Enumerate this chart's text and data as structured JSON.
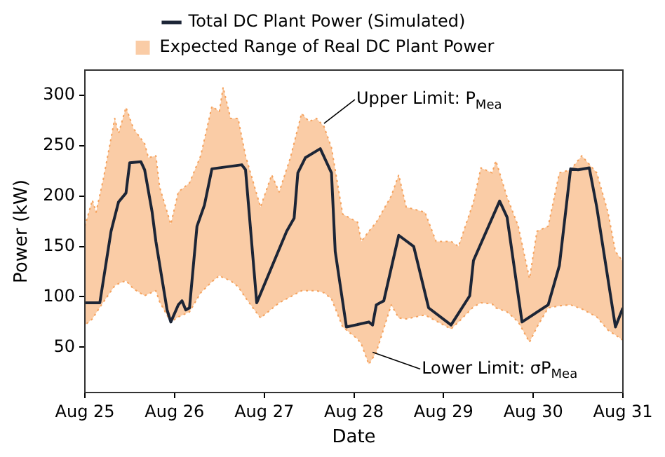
{
  "chart_data": {
    "type": "line",
    "xlabel": "Date",
    "ylabel": "Power (kW)",
    "legend": "top",
    "grid": false,
    "xlim": [
      "--08-25",
      "--08-31"
    ],
    "xticks": [
      {
        "value": "--08-25",
        "label": "Aug 25"
      },
      {
        "value": "--08-26",
        "label": "Aug 26"
      },
      {
        "value": "--08-27",
        "label": "Aug 27"
      },
      {
        "value": "--08-28",
        "label": "Aug 28"
      },
      {
        "value": "--08-29",
        "label": "Aug 29"
      },
      {
        "value": "--08-30",
        "label": "Aug 30"
      },
      {
        "value": "--08-31",
        "label": "Aug 31"
      }
    ],
    "ylim": [
      5,
      325
    ],
    "yticks": [
      50,
      100,
      150,
      200,
      250,
      300
    ],
    "series": [
      {
        "name": "Total DC Plant Power (Simulated)",
        "type": "line",
        "color": "#1c2536",
        "marker": "none",
        "line_style": "solid",
        "x": [
          "--08-25T00:00",
          "--08-25T04:00",
          "--08-25T07:00",
          "--08-25T09:00",
          "--08-25T11:00",
          "--08-25T12:00",
          "--08-25T15:00",
          "--08-25T16:00",
          "--08-25T18:00",
          "--08-25T19:00",
          "--08-25T22:00",
          "--08-25T23:00",
          "--08-26T01:00",
          "--08-26T02:00",
          "--08-26T03:00",
          "--08-26T04:00",
          "--08-26T06:00",
          "--08-26T08:00",
          "--08-26T10:00",
          "--08-26T18:00",
          "--08-26T19:00",
          "--08-26T22:00",
          "--08-27T06:00",
          "--08-27T08:00",
          "--08-27T09:00",
          "--08-27T11:00",
          "--08-27T15:00",
          "--08-27T18:00",
          "--08-27T19:00",
          "--08-27T22:00",
          "--08-28T04:00",
          "--08-28T05:00",
          "--08-28T06:00",
          "--08-28T07:00",
          "--08-28T08:00",
          "--08-28T12:00",
          "--08-28T16:00",
          "--08-28T20:00",
          "--08-29T02:00",
          "--08-29T07:00",
          "--08-29T08:00",
          "--08-29T15:00",
          "--08-29T17:00",
          "--08-29T21:00",
          "--08-30T04:00",
          "--08-30T07:00",
          "--08-30T10:00",
          "--08-30T12:00",
          "--08-30T15:00",
          "--08-30T17:00",
          "--08-30T22:00",
          "--08-31T00:00"
        ],
        "values": [
          94,
          94,
          165,
          194,
          203,
          233,
          234,
          226,
          184,
          155,
          87,
          75,
          92,
          96,
          87,
          89,
          170,
          191,
          227,
          231,
          226,
          94,
          165,
          178,
          223,
          238,
          247,
          223,
          145,
          70,
          75,
          72,
          92,
          94,
          96,
          161,
          150,
          89,
          72,
          101,
          136,
          195,
          179,
          75,
          92,
          131,
          227,
          226,
          228,
          189,
          70,
          89
        ]
      },
      {
        "name": "Expected Range of Real DC Plant Power",
        "type": "area",
        "color": "#f5a25d",
        "marker": "none",
        "line_style": "dotted",
        "x": [
          "--08-25T00:00",
          "--08-25T02:00",
          "--08-25T03:00",
          "--08-25T05:00",
          "--08-25T08:00",
          "--08-25T09:00",
          "--08-25T11:00",
          "--08-25T13:00",
          "--08-25T16:00",
          "--08-25T17:00",
          "--08-25T19:00",
          "--08-25T20:00",
          "--08-25T23:00",
          "--08-26T01:00",
          "--08-26T04:00",
          "--08-26T07:00",
          "--08-26T10:00",
          "--08-26T12:00",
          "--08-26T13:00",
          "--08-26T15:00",
          "--08-26T17:00",
          "--08-26T19:00",
          "--08-26T23:00",
          "--08-27T02:00",
          "--08-27T04:00",
          "--08-27T07:00",
          "--08-27T10:00",
          "--08-27T12:00",
          "--08-27T14:00",
          "--08-27T16:00",
          "--08-27T18:00",
          "--08-27T21:00",
          "--08-28T01:00",
          "--08-28T02:00",
          "--08-28T04:00",
          "--08-28T06:00",
          "--08-28T10:00",
          "--08-28T12:00",
          "--08-28T14:00",
          "--08-28T19:00",
          "--08-28T22:00",
          "--08-29T02:00",
          "--08-29T04:00",
          "--08-29T08:00",
          "--08-29T10:00",
          "--08-29T13:00",
          "--08-29T14:00",
          "--08-29T17:00",
          "--08-29T20:00",
          "--08-29T23:00",
          "--08-30T01:00",
          "--08-30T04:00",
          "--08-30T07:00",
          "--08-30T10:00",
          "--08-30T13:00",
          "--08-30T17:00",
          "--08-30T20:00",
          "--08-30T22:00",
          "--08-31T00:00"
        ],
        "values": [
          null,
          null,
          null,
          null,
          null,
          null,
          null,
          null,
          null,
          null,
          null,
          null,
          null,
          null,
          null,
          null,
          null,
          null,
          null,
          null,
          null,
          null,
          null,
          null,
          null,
          null,
          null,
          null,
          null,
          null,
          null,
          null,
          null,
          null,
          null,
          null,
          null,
          null,
          null,
          null,
          null,
          null,
          null,
          null,
          null,
          null,
          null,
          null,
          null,
          null,
          null,
          null,
          null,
          null,
          null,
          null,
          null,
          null,
          null
        ],
        "upper": [
          170,
          196,
          184,
          218,
          277,
          262,
          288,
          267,
          252,
          238,
          240,
          209,
          172,
          204,
          213,
          240,
          289,
          284,
          308,
          277,
          277,
          240,
          189,
          221,
          204,
          238,
          282,
          274,
          277,
          269,
          248,
          182,
          174,
          155,
          165,
          174,
          200,
          221,
          189,
          184,
          155,
          155,
          150,
          194,
          228,
          223,
          235,
          199,
          170,
          118,
          165,
          170,
          223,
          226,
          240,
          223,
          184,
          145,
          135
        ],
        "lower": [
          72,
          78,
          84,
          95,
          111,
          113,
          116,
          108,
          101,
          103,
          106,
          95,
          75,
          80,
          85,
          104,
          115,
          121,
          119,
          116,
          110,
          99,
          79,
          88,
          94,
          100,
          106,
          106,
          106,
          104,
          98,
          70,
          58,
          53,
          33,
          45,
          92,
          79,
          78,
          82,
          76,
          68,
          75,
          90,
          94,
          93,
          89,
          85,
          75,
          55,
          70,
          89,
          91,
          92,
          88,
          80,
          67,
          62,
          57
        ]
      }
    ],
    "annotations": [
      {
        "text": "Upper Limit: P$_{Mea}$",
        "x": "--08-27T16:00",
        "y": 272
      },
      {
        "text": "Lower Limit: σP$_{Mea}$",
        "x": "--08-28T05:00",
        "y": 45
      }
    ]
  }
}
